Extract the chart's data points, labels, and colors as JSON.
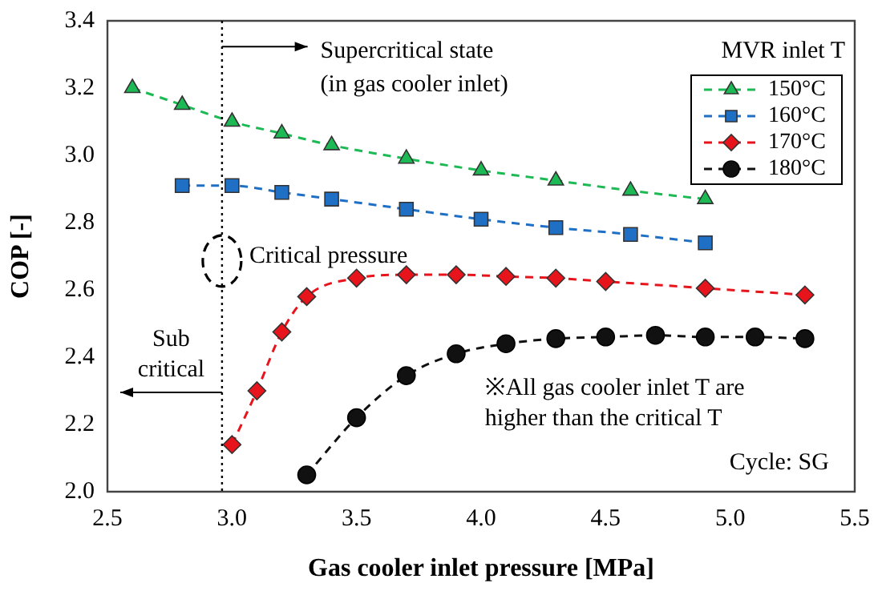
{
  "chart_data": {
    "type": "line",
    "xlabel": "Gas cooler inlet pressure [MPa]",
    "ylabel": "COP [-]",
    "legend_title": "MVR inlet T",
    "legend": "top right",
    "line_style": "dashed",
    "grid": false,
    "xlim": [
      2.5,
      5.5
    ],
    "xticks": [
      {
        "value": 2.5,
        "label": "2.5"
      },
      {
        "value": 3.0,
        "label": "3.0"
      },
      {
        "value": 3.5,
        "label": "3.5"
      },
      {
        "value": 4.0,
        "label": "4.0"
      },
      {
        "value": 4.5,
        "label": "4.5"
      },
      {
        "value": 5.0,
        "label": "5.0"
      },
      {
        "value": 5.5,
        "label": "5.5"
      }
    ],
    "ylim": [
      2.0,
      3.4
    ],
    "yticks": [
      {
        "value": 2.0,
        "label": "2.0"
      },
      {
        "value": 2.2,
        "label": "2.2"
      },
      {
        "value": 2.4,
        "label": "2.4"
      },
      {
        "value": 2.6,
        "label": "2.6"
      },
      {
        "value": 2.8,
        "label": "2.8"
      },
      {
        "value": 3.0,
        "label": "3.0"
      },
      {
        "value": 3.2,
        "label": "3.2"
      },
      {
        "value": 3.4,
        "label": "3.4"
      }
    ],
    "series": [
      {
        "name": "150°C",
        "color": "#1db954",
        "marker": "triangle",
        "x": [
          2.6,
          2.8,
          3.0,
          3.2,
          3.4,
          3.7,
          4.0,
          4.3,
          4.6,
          4.9
        ],
        "values": [
          3.2,
          3.15,
          3.1,
          3.065,
          3.03,
          2.99,
          2.955,
          2.925,
          2.895,
          2.87
        ]
      },
      {
        "name": "160°C",
        "color": "#1f6fc5",
        "marker": "square",
        "x": [
          2.8,
          3.0,
          3.2,
          3.4,
          3.7,
          4.0,
          4.3,
          4.6,
          4.9
        ],
        "values": [
          2.91,
          2.91,
          2.89,
          2.87,
          2.84,
          2.81,
          2.785,
          2.765,
          2.74
        ]
      },
      {
        "name": "170°C",
        "color": "#e8141c",
        "marker": "diamond",
        "x": [
          3.0,
          3.1,
          3.2,
          3.3,
          3.5,
          3.7,
          3.9,
          4.1,
          4.3,
          4.5,
          4.9,
          5.3
        ],
        "values": [
          2.14,
          2.3,
          2.475,
          2.58,
          2.635,
          2.645,
          2.645,
          2.64,
          2.635,
          2.625,
          2.605,
          2.585
        ]
      },
      {
        "name": "180°C",
        "color": "#111111",
        "marker": "circle",
        "x": [
          3.3,
          3.5,
          3.7,
          3.9,
          4.1,
          4.3,
          4.5,
          4.7,
          4.9,
          5.1,
          5.3
        ],
        "values": [
          2.05,
          2.22,
          2.345,
          2.41,
          2.44,
          2.455,
          2.46,
          2.465,
          2.46,
          2.46,
          2.455
        ]
      }
    ],
    "ref_lines": [
      {
        "axis": "x",
        "value": 2.96,
        "line_style": "dotted",
        "color": "#000000"
      }
    ],
    "annotations": [
      "Supercritical state\n(in gas cooler inlet)",
      "Critical pressure",
      "Sub\ncritical",
      "※All gas cooler inlet T are\nhigher than the critical T",
      "Cycle: SG"
    ]
  }
}
